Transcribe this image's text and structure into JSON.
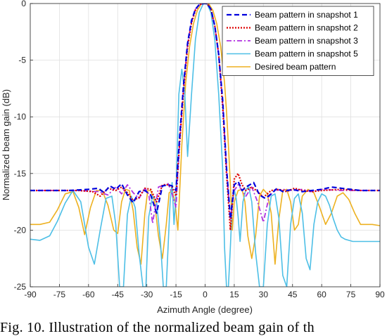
{
  "caption": "Fig. 10. Illustration of the normalized beam gain of th",
  "chart_data": {
    "type": "line",
    "title": "",
    "xlabel": "Azimuth Angle (degree)",
    "ylabel": "Normalized beam gain (dB)",
    "xlim": [
      -90,
      90
    ],
    "ylim": [
      -25,
      0
    ],
    "xticks": [
      -90,
      -75,
      -60,
      -45,
      -30,
      -15,
      0,
      15,
      30,
      45,
      60,
      75,
      90
    ],
    "yticks": [
      0,
      -5,
      -10,
      -15,
      -20,
      -25
    ],
    "grid": true,
    "legend_position": "top-right",
    "series": [
      {
        "name": "Beam pattern in snapshot 1",
        "color": "#0000dd",
        "style": "dashed",
        "x": [
          -90,
          -70,
          -60,
          -55,
          -52,
          -49,
          -46,
          -43,
          -40,
          -37,
          -34,
          -31,
          -28,
          -25,
          -22,
          -19,
          -17,
          -15,
          -13,
          -11,
          -9,
          -7,
          -5,
          -3,
          -1,
          0,
          1,
          3,
          5,
          7,
          9,
          11,
          13,
          15,
          17,
          19,
          22,
          25,
          28,
          31,
          34,
          37,
          40,
          45,
          50,
          55,
          60,
          65,
          70,
          75,
          80,
          90
        ],
        "y": [
          -16.5,
          -16.5,
          -16.4,
          -16.3,
          -16.7,
          -16.1,
          -16.4,
          -15.9,
          -16.9,
          -17.6,
          -16.6,
          -16.5,
          -16.9,
          -18.5,
          -16.1,
          -16.0,
          -16.1,
          -16.5,
          -11.5,
          -7.0,
          -3.5,
          -1.5,
          -0.5,
          -0.1,
          0,
          0,
          0,
          -0.5,
          -2.0,
          -4.5,
          -8.5,
          -14.5,
          -19.0,
          -16.0,
          -15.7,
          -16.5,
          -16.1,
          -15.8,
          -16.9,
          -17.2,
          -16.8,
          -16.3,
          -16.6,
          -16.4,
          -16.6,
          -16.5,
          -16.4,
          -16.2,
          -16.3,
          -16.4,
          -16.5,
          -16.5
        ]
      },
      {
        "name": "Beam pattern in snapshot 2",
        "color": "#dd0000",
        "style": "dotted",
        "x": [
          -90,
          -65,
          -58,
          -54,
          -50,
          -46,
          -43,
          -40,
          -37,
          -34,
          -31,
          -28,
          -25,
          -22,
          -19,
          -17,
          -15,
          -13,
          -11,
          -9,
          -7,
          -5,
          -3,
          -1,
          0,
          1,
          3,
          5,
          7,
          9,
          11,
          13,
          15,
          17,
          19,
          21,
          24,
          27,
          30,
          34,
          38,
          42,
          46,
          50,
          55,
          60,
          70,
          80,
          90
        ],
        "y": [
          -16.5,
          -16.5,
          -16.6,
          -17.0,
          -16.3,
          -16.5,
          -16.2,
          -16.7,
          -17.4,
          -17.1,
          -16.3,
          -16.4,
          -17.5,
          -16.0,
          -16.0,
          -16.2,
          -17.0,
          -12.0,
          -7.5,
          -3.8,
          -1.7,
          -0.6,
          -0.1,
          0,
          0,
          0,
          -0.5,
          -2.0,
          -4.5,
          -9.0,
          -15.0,
          -20.0,
          -15.5,
          -15.0,
          -16.0,
          -16.5,
          -16.2,
          -16.6,
          -17.1,
          -16.5,
          -16.4,
          -16.6,
          -16.3,
          -16.5,
          -16.6,
          -16.5,
          -16.4,
          -16.5,
          -16.5
        ]
      },
      {
        "name": "Beam pattern in snapshot 3",
        "color": "#b030e0",
        "style": "dashdot",
        "x": [
          -90,
          -65,
          -55,
          -50,
          -46,
          -43,
          -40,
          -37,
          -34,
          -31,
          -29,
          -27,
          -24,
          -21,
          -19,
          -17,
          -15,
          -13,
          -11,
          -9,
          -7,
          -5,
          -3,
          -1,
          0,
          1,
          3,
          5,
          7,
          9,
          11,
          13,
          15,
          17,
          19,
          21,
          24,
          27,
          30,
          33,
          36,
          40,
          45,
          50,
          55,
          60,
          70,
          80,
          90
        ],
        "y": [
          -16.5,
          -16.5,
          -16.6,
          -16.9,
          -16.2,
          -16.8,
          -16.0,
          -16.7,
          -17.2,
          -16.3,
          -16.8,
          -19.4,
          -16.2,
          -16.0,
          -15.9,
          -16.8,
          -18.0,
          -12.0,
          -7.3,
          -3.6,
          -1.6,
          -0.5,
          -0.1,
          0,
          0,
          0,
          -0.5,
          -2.0,
          -4.5,
          -8.8,
          -14.5,
          -19.0,
          -16.5,
          -16.0,
          -16.5,
          -17.0,
          -16.2,
          -17.5,
          -19.3,
          -17.0,
          -16.5,
          -16.4,
          -16.5,
          -16.4,
          -16.6,
          -16.4,
          -16.5,
          -16.5,
          -16.5
        ]
      },
      {
        "name": "Beam pattern in snapshot 5",
        "color": "#4dbfe6",
        "style": "solid",
        "x": [
          -90,
          -85,
          -80,
          -76,
          -72,
          -68,
          -64,
          -60,
          -57,
          -54,
          -51,
          -48,
          -46,
          -44,
          -42,
          -40,
          -38,
          -36,
          -34,
          -32,
          -30.5,
          -29,
          -27,
          -25,
          -23,
          -21.5,
          -20,
          -18,
          -17,
          -16,
          -15,
          -13.5,
          -12,
          -10.5,
          -9,
          -7,
          -5,
          -3,
          -1,
          0,
          1,
          3,
          5,
          7,
          9,
          10,
          11,
          12,
          13,
          14,
          15,
          16,
          17,
          18,
          19.5,
          21,
          22.5,
          24,
          26,
          28,
          30,
          32,
          34,
          36,
          38,
          40,
          42,
          44,
          46,
          48,
          50,
          52,
          54,
          56,
          58,
          60,
          62,
          64,
          66,
          68,
          70,
          72,
          74,
          76,
          78,
          80,
          82,
          84,
          86,
          88,
          90
        ],
        "y": [
          -20.8,
          -20.9,
          -20.5,
          -19.2,
          -17.6,
          -16.5,
          -17.5,
          -21.5,
          -23.0,
          -20.0,
          -17.2,
          -17.0,
          -19.5,
          -25,
          -25,
          -18.6,
          -17.0,
          -18.0,
          -22.0,
          -25,
          -25,
          -18.8,
          -17.0,
          -17.5,
          -21.0,
          -25,
          -25,
          -17.5,
          -15.8,
          -19.5,
          -16.8,
          -8.0,
          -5.8,
          -7.8,
          -13.5,
          -8.0,
          -3.2,
          -0.8,
          -0.05,
          0,
          -0.05,
          -0.8,
          -3.2,
          -8.0,
          -14.5,
          -21.5,
          -25,
          -25,
          -21.5,
          -17.5,
          -16.4,
          -17.2,
          -18.8,
          -21.0,
          -17.5,
          -16.4,
          -16.2,
          -17.5,
          -22.0,
          -25,
          -25,
          -19.5,
          -17.0,
          -16.8,
          -19.0,
          -24.0,
          -25,
          -19.5,
          -17.2,
          -16.8,
          -18.5,
          -22.5,
          -23.5,
          -19.5,
          -17.5,
          -16.8,
          -17.0,
          -17.8,
          -19.0,
          -20.0,
          -20.6,
          -20.8,
          -20.9,
          -21.0,
          -21.0,
          -21.0,
          -21.0,
          -21.0,
          -21.0,
          -21.0,
          -21.0
        ]
      },
      {
        "name": "Desired beam pattern",
        "color": "#edb120",
        "style": "solid",
        "x": [
          -90,
          -85,
          -80,
          -76,
          -72,
          -68,
          -65,
          -62,
          -59,
          -56,
          -53,
          -50,
          -47,
          -45,
          -43,
          -41,
          -39,
          -37,
          -35,
          -33,
          -31,
          -29.5,
          -28,
          -26,
          -24,
          -22,
          -20,
          -18.5,
          -17,
          -15.5,
          -14,
          -12,
          -10,
          -8,
          -6,
          -4,
          -2,
          0,
          2,
          4,
          6,
          8,
          10,
          11,
          12,
          13,
          14,
          15,
          17,
          19,
          20.5,
          22,
          24,
          26,
          28,
          30,
          32,
          34,
          36,
          38,
          40,
          42,
          44,
          46,
          48,
          50,
          53,
          56,
          59,
          62,
          65,
          68,
          71,
          74,
          77,
          80,
          83,
          86,
          90
        ],
        "y": [
          -19.5,
          -19.5,
          -19.3,
          -18.2,
          -16.8,
          -16.6,
          -18.0,
          -20.4,
          -18.0,
          -16.5,
          -16.5,
          -17.8,
          -20.0,
          -20.3,
          -17.5,
          -16.4,
          -16.5,
          -18.3,
          -21.5,
          -23.0,
          -18.5,
          -16.5,
          -16.5,
          -17.5,
          -20.5,
          -22.5,
          -19.5,
          -16.7,
          -16.5,
          -17.5,
          -20.0,
          -12.5,
          -7.0,
          -3.8,
          -1.8,
          -0.6,
          -0.05,
          0,
          -0.05,
          -0.6,
          -1.8,
          -3.8,
          -7.0,
          -9.5,
          -12.5,
          -16.0,
          -20.0,
          -17.5,
          -16.5,
          -16.4,
          -17.5,
          -20.5,
          -22.5,
          -20.5,
          -17.0,
          -16.4,
          -16.8,
          -18.5,
          -23.0,
          -19.0,
          -16.5,
          -16.4,
          -17.5,
          -20.0,
          -19.5,
          -17.0,
          -16.4,
          -16.7,
          -18.0,
          -19.5,
          -18.5,
          -17.0,
          -16.7,
          -17.3,
          -18.5,
          -19.5,
          -19.5,
          -19.5,
          -19.6
        ]
      }
    ]
  }
}
